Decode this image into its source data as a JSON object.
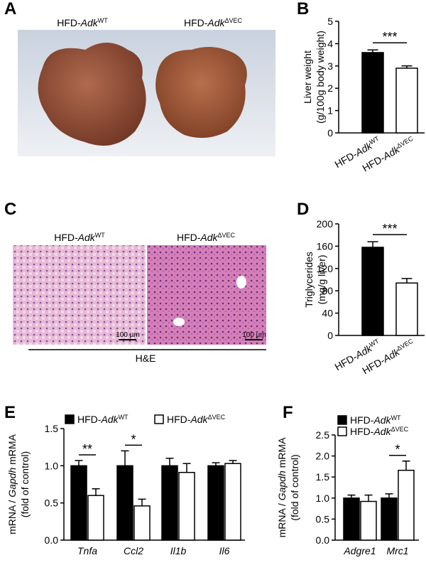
{
  "figure": {
    "panel_labels": [
      "A",
      "B",
      "C",
      "D",
      "E",
      "F"
    ],
    "panel_a": {
      "labels": [
        [
          "HFD-",
          "Adk",
          "WT"
        ],
        [
          "HFD-",
          "Adk",
          "ΔVEC"
        ]
      ]
    },
    "panel_c": {
      "labels": [
        [
          "HFD-",
          "Adk",
          "WT"
        ],
        [
          "HFD-",
          "Adk",
          "ΔVEC"
        ]
      ],
      "scale_bars": [
        "100 µm",
        "100 µm"
      ],
      "stain": "H&E"
    }
  },
  "chart_data": [
    {
      "type": "bar",
      "categories": [
        [
          "HFD-",
          "Adk",
          "WT"
        ],
        [
          "HFD-",
          "Adk",
          "ΔVEC"
        ]
      ],
      "values": [
        3.6,
        2.9
      ],
      "errors": [
        0.12,
        0.1
      ],
      "colors": [
        "#000000",
        "#ffffff"
      ],
      "ylabel": [
        [
          "Liver weight"
        ],
        [
          "(g/100g body weight)"
        ]
      ],
      "ylim": [
        0,
        5
      ],
      "yticks": [
        0,
        1,
        2,
        3,
        4,
        5
      ],
      "significance": "***"
    },
    {
      "type": "bar",
      "categories": [
        [
          "HFD-",
          "Adk",
          "WT"
        ],
        [
          "HFD-",
          "Adk",
          "ΔVEC"
        ]
      ],
      "values": [
        158,
        94
      ],
      "errors": [
        10,
        8
      ],
      "colors": [
        "#000000",
        "#ffffff"
      ],
      "ylabel": [
        [
          "Triglycerides"
        ],
        [
          "(mg/g liver)"
        ]
      ],
      "ylim": [
        0,
        200
      ],
      "yticks": [
        0,
        40,
        80,
        120,
        160,
        200
      ],
      "significance": "***"
    },
    {
      "type": "grouped_bar",
      "categories": [
        "Tnfa",
        "Ccl2",
        "Il1b",
        "Il6"
      ],
      "series": [
        {
          "name": [
            "HFD-",
            "Adk",
            "WT"
          ],
          "color": "#000000",
          "values": [
            1.0,
            1.0,
            1.0,
            1.0
          ],
          "errors": [
            0.07,
            0.2,
            0.1,
            0.04
          ]
        },
        {
          "name": [
            "HFD-",
            "Adk",
            "ΔVEC"
          ],
          "color": "#ffffff",
          "values": [
            0.6,
            0.46,
            0.91,
            1.03
          ],
          "errors": [
            0.09,
            0.09,
            0.12,
            0.04
          ]
        }
      ],
      "ylabel": [
        [
          "mRNA / ",
          "Gapdh",
          " mRMA"
        ],
        [
          "(fold of control)"
        ]
      ],
      "ylim": [
        0,
        1.5
      ],
      "yticks": [
        {
          "value": 0,
          "label": "0.0"
        },
        {
          "value": 0.5,
          "label": "0.5"
        },
        {
          "value": 1,
          "label": "1.0"
        },
        {
          "value": 1.5,
          "label": "1.5"
        }
      ],
      "significance": [
        "**",
        "*",
        null,
        null
      ],
      "legend": "top"
    },
    {
      "type": "grouped_bar",
      "categories": [
        "Adgre1",
        "Mrc1"
      ],
      "series": [
        {
          "name": [
            "HFD-",
            "Adk",
            "WT"
          ],
          "color": "#000000",
          "values": [
            1.0,
            1.0
          ],
          "errors": [
            0.07,
            0.1
          ]
        },
        {
          "name": [
            "HFD-",
            "Adk",
            "ΔVEC"
          ],
          "color": "#ffffff",
          "values": [
            0.92,
            1.66
          ],
          "errors": [
            0.15,
            0.22
          ]
        }
      ],
      "ylabel": [
        [
          "mRNA / ",
          "Gapdh",
          " mRMA"
        ],
        [
          "(fold of control)"
        ]
      ],
      "ylim": [
        0,
        2.5
      ],
      "yticks": [
        {
          "value": 0,
          "label": "0.0"
        },
        {
          "value": 0.5,
          "label": "0.5"
        },
        {
          "value": 1,
          "label": "1.0"
        },
        {
          "value": 1.5,
          "label": "1.5"
        },
        {
          "value": 2,
          "label": "2.0"
        },
        {
          "value": 2.5,
          "label": "2.5"
        }
      ],
      "significance": [
        null,
        "*"
      ],
      "legend": "top-left"
    }
  ]
}
